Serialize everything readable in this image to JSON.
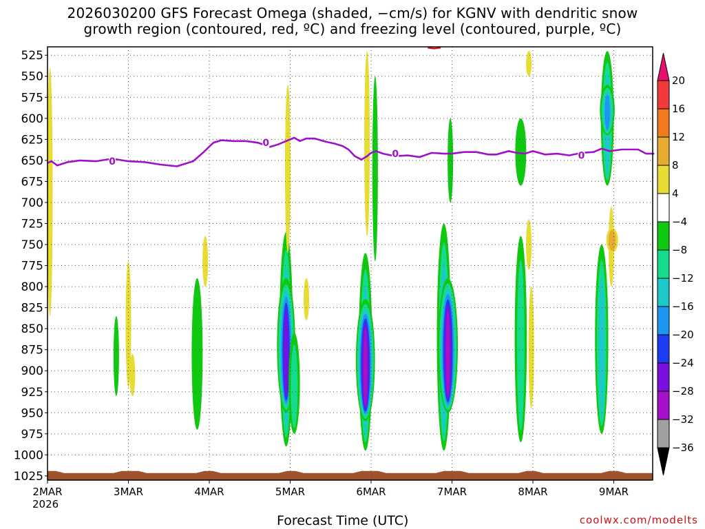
{
  "title_line1": "2026030200 GFS Forecast Omega (shaded, −cm/s) for KGNV with dendritic snow",
  "title_line2": "growth region (contoured, red, ºC) and freezing level (contoured, purple, ºC)",
  "xaxis_label": "Forecast Time (UTC)",
  "credit": "coolwx.com/modelts",
  "chart_data": {
    "type": "heatmap",
    "title": "2026030200 GFS Forecast Omega (shaded, −cm/s) for KGNV with dendritic snow growth region (contoured, red, ºC) and freezing level (contoured, purple, ºC)",
    "xlabel": "Forecast Time (UTC)",
    "ylabel": "",
    "x_tick_labels": [
      "2MAR",
      "3MAR",
      "4MAR",
      "5MAR",
      "6MAR",
      "7MAR",
      "8MAR",
      "9MAR"
    ],
    "x_year_label": "2026",
    "x_range_days": [
      0,
      7.5
    ],
    "y_tick_labels": [
      "525",
      "550",
      "575",
      "600",
      "625",
      "650",
      "675",
      "700",
      "725",
      "750",
      "775",
      "800",
      "825",
      "850",
      "875",
      "900",
      "925",
      "950",
      "975",
      "1000",
      "1025"
    ],
    "y_range_hpa": [
      515,
      1030
    ],
    "y_reversed": true,
    "grid": true,
    "colorbar": {
      "labels": [
        "20",
        "16",
        "12",
        "8",
        "4",
        "−4",
        "−8",
        "−12",
        "−16",
        "−20",
        "−24",
        "−28",
        "−32",
        "−36"
      ],
      "colors": [
        "#e8106f",
        "#f23a3a",
        "#f27a1e",
        "#e8ab32",
        "#e6dc32",
        "#ffffff",
        "#10c810",
        "#14dc8c",
        "#1cc8c8",
        "#1e96f0",
        "#1e3cf0",
        "#7a10e0",
        "#a610c8",
        "#a0a0a0",
        "#000000"
      ]
    },
    "freezing_level": {
      "label": "0",
      "color": "#a010c8",
      "points": [
        [
          0,
          653
        ],
        [
          0.05,
          651
        ],
        [
          0.12,
          656
        ],
        [
          0.25,
          652
        ],
        [
          0.4,
          650
        ],
        [
          0.6,
          651
        ],
        [
          0.8,
          648
        ],
        [
          1.0,
          651
        ],
        [
          1.2,
          652
        ],
        [
          1.4,
          655
        ],
        [
          1.6,
          657
        ],
        [
          1.8,
          651
        ],
        [
          1.92,
          641
        ],
        [
          2.05,
          629
        ],
        [
          2.15,
          626
        ],
        [
          2.3,
          627
        ],
        [
          2.45,
          627
        ],
        [
          2.6,
          629
        ],
        [
          2.75,
          634
        ],
        [
          2.85,
          631
        ],
        [
          2.95,
          627
        ],
        [
          3.05,
          623
        ],
        [
          3.12,
          627
        ],
        [
          3.2,
          624
        ],
        [
          3.3,
          624
        ],
        [
          3.45,
          628
        ],
        [
          3.55,
          630
        ],
        [
          3.65,
          633
        ],
        [
          3.72,
          637
        ],
        [
          3.8,
          645
        ],
        [
          3.88,
          649
        ],
        [
          3.95,
          645
        ],
        [
          4.0,
          641
        ],
        [
          4.06,
          639
        ],
        [
          4.15,
          642
        ],
        [
          4.3,
          645
        ],
        [
          4.45,
          644
        ],
        [
          4.6,
          646
        ],
        [
          4.75,
          641
        ],
        [
          4.9,
          642
        ],
        [
          5.0,
          642
        ],
        [
          5.15,
          640
        ],
        [
          5.3,
          640
        ],
        [
          5.45,
          643
        ],
        [
          5.55,
          643
        ],
        [
          5.7,
          639
        ],
        [
          5.8,
          641
        ],
        [
          5.9,
          642
        ],
        [
          6.0,
          639
        ],
        [
          6.15,
          643
        ],
        [
          6.3,
          642
        ],
        [
          6.45,
          644
        ],
        [
          6.6,
          641
        ],
        [
          6.75,
          640
        ],
        [
          6.85,
          636
        ],
        [
          6.95,
          639
        ],
        [
          7.1,
          637
        ],
        [
          7.3,
          637
        ],
        [
          7.4,
          642
        ],
        [
          7.5,
          642
        ]
      ]
    },
    "dgz_contour": {
      "color": "#e01010",
      "points": [
        [
          4.7,
          516
        ],
        [
          4.78,
          517
        ],
        [
          4.86,
          516
        ]
      ]
    },
    "ground": {
      "color": "#a0522d",
      "pressure_top_hpa": 1020
    },
    "omega_regions": [
      {
        "t": 0.03,
        "p1": 540,
        "p2": 835,
        "v": 5
      },
      {
        "t": 0.85,
        "p1": 835,
        "p2": 930,
        "v": -6
      },
      {
        "t": 1.0,
        "p1": 770,
        "p2": 920,
        "v": 5
      },
      {
        "t": 1.05,
        "p1": 880,
        "p2": 930,
        "v": 5
      },
      {
        "t": 1.85,
        "p1": 790,
        "p2": 970,
        "v": -7
      },
      {
        "t": 1.95,
        "p1": 740,
        "p2": 800,
        "v": 5
      },
      {
        "t": 2.95,
        "p1": 735,
        "p2": 990,
        "v": -14
      },
      {
        "t": 2.95,
        "p1": 790,
        "p2": 950,
        "v": -26
      },
      {
        "t": 2.97,
        "p1": 560,
        "p2": 760,
        "v": 6
      },
      {
        "t": 3.05,
        "p1": 855,
        "p2": 975,
        "v": -8
      },
      {
        "t": 3.2,
        "p1": 790,
        "p2": 840,
        "v": 5
      },
      {
        "t": 3.93,
        "p1": 760,
        "p2": 995,
        "v": -14
      },
      {
        "t": 3.93,
        "p1": 815,
        "p2": 960,
        "v": -28
      },
      {
        "t": 3.95,
        "p1": 520,
        "p2": 740,
        "v": 5
      },
      {
        "t": 4.05,
        "p1": 550,
        "p2": 770,
        "v": -6
      },
      {
        "t": 4.9,
        "p1": 725,
        "p2": 995,
        "v": -15
      },
      {
        "t": 4.95,
        "p1": 790,
        "p2": 950,
        "v": -30
      },
      {
        "t": 4.98,
        "p1": 600,
        "p2": 700,
        "v": -6
      },
      {
        "t": 5.85,
        "p1": 740,
        "p2": 985,
        "v": -10
      },
      {
        "t": 5.95,
        "p1": 720,
        "p2": 780,
        "v": 5
      },
      {
        "t": 5.98,
        "p1": 800,
        "p2": 945,
        "v": 5
      },
      {
        "t": 5.85,
        "p1": 600,
        "p2": 680,
        "v": -7
      },
      {
        "t": 5.95,
        "p1": 520,
        "p2": 550,
        "v": 5
      },
      {
        "t": 6.92,
        "p1": 520,
        "p2": 680,
        "v": -12
      },
      {
        "t": 6.92,
        "p1": 560,
        "p2": 620,
        "v": -17
      },
      {
        "t": 6.85,
        "p1": 750,
        "p2": 975,
        "v": -13
      },
      {
        "t": 6.97,
        "p1": 705,
        "p2": 800,
        "v": 6
      },
      {
        "t": 6.98,
        "p1": 730,
        "p2": 760,
        "v": 9
      }
    ]
  }
}
